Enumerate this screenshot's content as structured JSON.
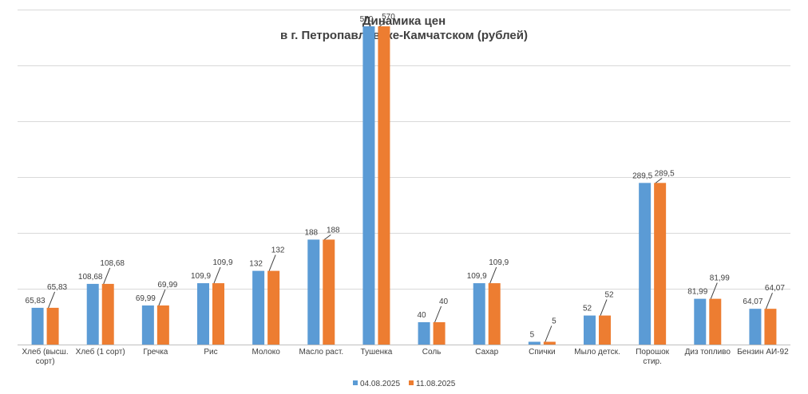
{
  "chart_data": {
    "type": "bar",
    "title": "Динамика цен",
    "subtitle": "в г. Петропавловске-Камчатском (рублей)",
    "categories": [
      [
        "Хлеб (высш.",
        "сорт)"
      ],
      [
        "Хлеб (1 сорт)"
      ],
      [
        "Гречка"
      ],
      [
        "Рис"
      ],
      [
        "Молоко"
      ],
      [
        "Масло раст."
      ],
      [
        "Тушенка"
      ],
      [
        "Соль"
      ],
      [
        "Сахар"
      ],
      [
        "Спички"
      ],
      [
        "Мыло детск."
      ],
      [
        "Порошок",
        "стир."
      ],
      [
        "Диз топливо"
      ],
      [
        "Бензин АИ-92"
      ]
    ],
    "series": [
      {
        "name": "04.08.2025",
        "color": "#5B9BD5",
        "values": [
          65.83,
          108.68,
          69.99,
          109.9,
          132,
          188,
          570,
          40,
          109.9,
          5,
          52,
          289.5,
          81.99,
          64.07
        ],
        "labels": [
          "65,83",
          "108,68",
          "69,99",
          "109,9",
          "132",
          "188",
          "570",
          "40",
          "109,9",
          "5",
          "52",
          "289,5",
          "81,99",
          "64,07"
        ]
      },
      {
        "name": "11.08.2025",
        "color": "#ED7D31",
        "values": [
          65.83,
          108.68,
          69.99,
          109.9,
          132,
          188,
          570,
          40,
          109.9,
          5,
          52,
          289.5,
          81.99,
          64.07
        ],
        "labels": [
          "65,83",
          "108,68",
          "69,99",
          "109,9",
          "132",
          "188",
          "570",
          "40",
          "109,9",
          "5",
          "52",
          "289,5",
          "81,99",
          "64,07"
        ]
      }
    ],
    "ylim": [
      0,
      600
    ],
    "grid": true,
    "legend": "bottom"
  }
}
